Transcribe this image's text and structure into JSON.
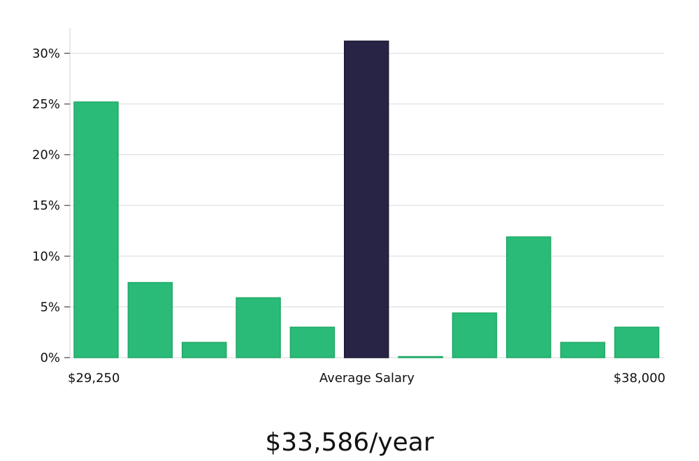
{
  "chart_data": {
    "type": "bar",
    "y_ticks": [
      "0%",
      "5%",
      "10%",
      "15%",
      "20%",
      "25%",
      "30%"
    ],
    "ylim": [
      0,
      32.5
    ],
    "values": [
      25.2,
      7.4,
      1.5,
      5.9,
      3.0,
      31.2,
      0.1,
      4.4,
      11.9,
      1.5,
      3.0
    ],
    "highlight_index": 5,
    "x_labels": {
      "left": "$29,250",
      "center": "Average Salary",
      "right": "$38,000"
    },
    "grid": true,
    "colors": {
      "bar": "#29bb77",
      "highlight": "#272445",
      "grid": "#d9d9d9",
      "axis": "#d0d0d0"
    }
  },
  "salary": {
    "display": "$33,586/year"
  }
}
